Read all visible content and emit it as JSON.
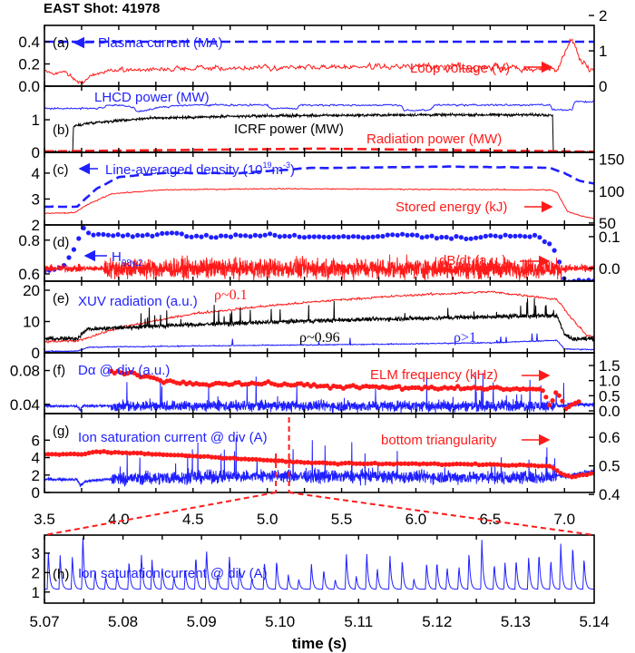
{
  "title": "EAST Shot: 41978",
  "colors": {
    "blue": "#1f1fff",
    "red": "#ff1a1a",
    "black": "#000000"
  },
  "chart_data": {
    "type": "line",
    "xlabel": "time (s)",
    "xlim": [
      3.5,
      7.2
    ],
    "xticks": [
      "3.5",
      "4.0",
      "4.5",
      "5.0",
      "5.5",
      "6.0",
      "6.5",
      "7.0"
    ],
    "zoom_xlim": [
      5.07,
      5.14
    ],
    "zoom_xticks": [
      "5.07",
      "5.08",
      "5.09",
      "5.10",
      "5.11",
      "5.12",
      "5.13",
      "5.14"
    ],
    "panels": [
      {
        "label": "(a)",
        "ylim_left": [
          0,
          0.547
        ],
        "yticks_left": [
          "0.0",
          "0.2",
          "0.4"
        ],
        "ylim_right": [
          0,
          1.72
        ],
        "yticks_right": [
          "0",
          "1",
          "2"
        ],
        "annotations": [
          {
            "text": "Plasma current (MA)",
            "color": "blue"
          },
          {
            "text": "Loop voltage (V)",
            "color": "red"
          }
        ],
        "series": [
          {
            "name": "Plasma current (MA)",
            "id": "ip",
            "axis": "left",
            "color": "blue",
            "style": "dashed",
            "x": [
              3.5,
              7.2
            ],
            "y": [
              0.4,
              0.4
            ]
          },
          {
            "name": "Loop voltage (V)",
            "id": "vloop",
            "axis": "right",
            "color": "red",
            "style": "line",
            "x": [
              3.5,
              3.65,
              3.72,
              3.76,
              3.82,
              3.95,
              4.5,
              5.5,
              6.5,
              6.95,
              7.0,
              7.05,
              7.1,
              7.15,
              7.2
            ],
            "y": [
              0.4,
              0.4,
              0.15,
              0.05,
              0.3,
              0.45,
              0.5,
              0.55,
              0.55,
              0.5,
              0.9,
              1.35,
              0.8,
              0.6,
              0.4
            ]
          }
        ]
      },
      {
        "label": "(b)",
        "ylim_left": [
          0,
          2.03
        ],
        "yticks_left": [
          "0",
          "1"
        ],
        "annotations": [
          {
            "text": "LHCD power (MW)",
            "color": "blue"
          },
          {
            "text": "ICRF power (MW)",
            "color": "black"
          },
          {
            "text": "Radiation power (MW)",
            "color": "red"
          }
        ],
        "series": [
          {
            "name": "LHCD power (MW)",
            "id": "lhcd",
            "axis": "left",
            "color": "blue",
            "style": "line",
            "x": [
              3.5,
              3.9,
              3.92,
              4.1,
              4.12,
              4.2,
              4.3,
              4.5,
              5.0,
              5.02,
              5.2,
              5.22,
              5.9,
              5.92,
              6.1,
              6.12,
              6.9,
              6.92,
              7.05,
              7.07,
              7.2
            ],
            "y": [
              1.35,
              1.35,
              1.45,
              1.4,
              1.25,
              1.3,
              1.4,
              1.45,
              1.45,
              1.35,
              1.35,
              1.45,
              1.45,
              1.28,
              1.3,
              1.45,
              1.45,
              1.3,
              1.3,
              1.55,
              1.55
            ]
          },
          {
            "name": "ICRF power (MW)",
            "id": "icrf",
            "axis": "left",
            "color": "black",
            "style": "line",
            "x": [
              3.5,
              3.69,
              3.695,
              3.8,
              4.2,
              5.0,
              6.0,
              6.9,
              6.92,
              6.925,
              7.2
            ],
            "y": [
              0,
              0,
              0.8,
              0.9,
              1.05,
              1.12,
              1.15,
              1.15,
              1.15,
              0,
              0
            ]
          },
          {
            "name": "Radiation power (MW)",
            "id": "prad",
            "axis": "left",
            "color": "red",
            "style": "dashed",
            "x": [
              3.5,
              3.7,
              4.5,
              5.5,
              6.9,
              7.0,
              7.1,
              7.2
            ],
            "y": [
              0.03,
              0.03,
              0.08,
              0.12,
              0.14,
              0.12,
              0.03,
              0.02
            ]
          }
        ]
      },
      {
        "label": "(c)",
        "ylim_left": [
          2,
          4.8
        ],
        "yticks_left": [
          "2",
          "3",
          "4"
        ],
        "ylim_right": [
          47,
          161
        ],
        "yticks_right": [
          "50",
          "100",
          "150"
        ],
        "annotations": [
          {
            "text": "Line-averaged density (10",
            "sup1": "19",
            "mid": "m",
            "sup2": "-3",
            "end": ")",
            "color": "blue"
          },
          {
            "text": "Stored energy (kJ)",
            "color": "red"
          }
        ],
        "series": [
          {
            "name": "Line-averaged density (10^19 m^-3)",
            "id": "ne",
            "axis": "left",
            "color": "blue",
            "style": "dashed",
            "x": [
              3.5,
              3.72,
              3.85,
              4.0,
              4.3,
              4.8,
              5.3,
              5.5,
              6.2,
              6.9,
              7.0,
              7.1,
              7.2
            ],
            "y": [
              2.7,
              2.7,
              3.4,
              3.85,
              4.0,
              4.0,
              4.2,
              4.2,
              4.25,
              4.2,
              4.0,
              3.7,
              3.6
            ]
          },
          {
            "name": "Stored energy (kJ)",
            "id": "wmhd",
            "axis": "right",
            "color": "red",
            "style": "line",
            "x": [
              3.5,
              3.7,
              3.8,
              3.95,
              4.3,
              5.0,
              6.0,
              6.9,
              6.95,
              7.02,
              7.1,
              7.2
            ],
            "y": [
              65,
              66,
              80,
              96,
              102,
              104,
              103,
              102,
              98,
              68,
              62,
              57
            ]
          }
        ]
      },
      {
        "label": "(d)",
        "ylim_left": [
          0.557,
          0.89
        ],
        "yticks_left": [
          "0.6",
          "0.8"
        ],
        "ylim_right": [
          -0.04,
          0.137
        ],
        "yticks_right": [
          "0.0",
          "0.1"
        ],
        "annotations": [
          {
            "text": "H",
            "sub": "98y,2",
            "color": "blue"
          },
          {
            "text": "dB/dt (a.u.)",
            "color": "red"
          }
        ],
        "series": [
          {
            "name": "H98y,2",
            "id": "h98",
            "axis": "left",
            "color": "blue",
            "style": "dots",
            "x": [
              3.5,
              3.62,
              3.7,
              3.76,
              3.82,
              4.2,
              4.4,
              4.5,
              5.0,
              5.5,
              5.9,
              6.3,
              6.8,
              6.85,
              6.92,
              6.96,
              7.0,
              7.2
            ],
            "y": [
              0.62,
              0.63,
              0.75,
              0.88,
              0.83,
              0.83,
              0.845,
              0.82,
              0.83,
              0.815,
              0.83,
              0.815,
              0.83,
              0.8,
              0.76,
              0.68,
              0.56,
              0.56
            ]
          },
          {
            "name": "dB/dt (a.u.)",
            "id": "dbdt",
            "axis": "right",
            "color": "red",
            "style": "line",
            "x": [
              3.5,
              3.75,
              3.9,
              7.2
            ],
            "y": [
              0.0,
              0.0,
              0.0,
              0.0
            ]
          }
        ]
      },
      {
        "label": "(e)",
        "ylim_left": [
          0,
          22.9
        ],
        "yticks_left": [
          "0",
          "10",
          "20"
        ],
        "annotations": [
          {
            "text": "XUV radiation (a.u.)",
            "color": "blue"
          },
          {
            "text": "ρ~0.1",
            "color": "red"
          },
          {
            "text": "ρ~0.96",
            "color": "black"
          },
          {
            "text": "ρ>1",
            "color": "blue"
          }
        ],
        "series": [
          {
            "name": "ρ~0.1",
            "id": "xuv1",
            "axis": "left",
            "color": "red",
            "style": "line",
            "x": [
              3.5,
              3.72,
              4.0,
              4.5,
              5.0,
              5.5,
              6.0,
              6.5,
              6.8,
              6.95,
              7.05,
              7.15,
              7.2
            ],
            "y": [
              3.5,
              3.8,
              8,
              12.5,
              15,
              17,
              18.5,
              19.5,
              18,
              17,
              11,
              5.5,
              5
            ]
          },
          {
            "name": "ρ~0.96",
            "id": "xuv2",
            "axis": "left",
            "color": "black",
            "style": "line",
            "x": [
              3.5,
              3.72,
              3.78,
              4.0,
              4.5,
              5.5,
              6.5,
              6.95,
              7.0,
              7.05,
              7.2
            ],
            "y": [
              4.5,
              4.5,
              7.5,
              8,
              9,
              10.5,
              11.5,
              12,
              6,
              4.5,
              4.5
            ]
          },
          {
            "name": "ρ>1",
            "id": "xuv3",
            "axis": "left",
            "color": "blue",
            "style": "line",
            "x": [
              3.5,
              3.72,
              3.8,
              4.5,
              5.5,
              6.5,
              6.95,
              7.0,
              7.2
            ],
            "y": [
              0.5,
              0.5,
              1.8,
              2.2,
              2.6,
              3.2,
              4.0,
              1.2,
              1.0
            ]
          }
        ]
      },
      {
        "label": "(f)",
        "ylim_left": [
          0.029,
          0.101
        ],
        "yticks_left": [
          "0.04",
          "0.08"
        ],
        "ylim_right": [
          -0.09,
          1.92
        ],
        "yticks_right": [
          "0.0",
          "0.5",
          "1.0",
          "1.5"
        ],
        "annotations": [
          {
            "text": "Dα @ div (a.u.)",
            "color": "blue"
          },
          {
            "text": "ELM frequency (kHz)",
            "color": "red"
          }
        ],
        "series": [
          {
            "name": "Dα @ div (a.u.)",
            "id": "dalpha",
            "axis": "left",
            "color": "blue",
            "style": "line",
            "x": [
              3.5,
              3.72,
              3.74,
              3.76,
              3.9,
              7.0,
              7.05,
              7.2
            ],
            "y": [
              0.038,
              0.038,
              0.033,
              0.038,
              0.038,
              0.038,
              0.04,
              0.039
            ]
          },
          {
            "name": "ELM frequency (kHz)",
            "id": "felm",
            "axis": "right",
            "color": "red",
            "style": "dots",
            "x": [
              3.95,
              4.1,
              4.15,
              4.3,
              4.5,
              5.0,
              5.5,
              6.0,
              6.5,
              6.85,
              6.9,
              6.95,
              7.0,
              7.1
            ],
            "y": [
              1.3,
              1.25,
              1.15,
              1.0,
              0.9,
              0.9,
              0.8,
              0.75,
              0.75,
              0.7,
              0.2,
              0.65,
              0.1,
              0.3
            ]
          }
        ]
      },
      {
        "label": "(g)",
        "ylim_left": [
          0,
          9.05
        ],
        "yticks_left": [
          "0",
          "2",
          "4",
          "6"
        ],
        "ylim_right": [
          0.407,
          0.683
        ],
        "yticks_right": [
          "0.4",
          "0.5",
          "0.6"
        ],
        "annotations": [
          {
            "text": "Ion saturation current @ div (A)",
            "color": "blue"
          },
          {
            "text": "bottom triangularity",
            "color": "red"
          }
        ],
        "series": [
          {
            "name": "Ion saturation current @ div (A)",
            "id": "isat",
            "axis": "left",
            "color": "blue",
            "style": "line",
            "x": [
              3.5,
              3.72,
              3.74,
              3.78,
              4.0,
              5.0,
              6.9,
              6.95,
              7.0,
              7.2
            ],
            "y": [
              1.5,
              1.5,
              0.8,
              1.3,
              1.6,
              1.9,
              1.7,
              2.0,
              1.8,
              2.5
            ]
          },
          {
            "name": "bottom triangularity",
            "id": "tri",
            "axis": "right",
            "color": "red",
            "style": "dots",
            "x": [
              3.5,
              3.75,
              3.85,
              4.5,
              5.0,
              5.2,
              5.5,
              6.0,
              6.5,
              6.9,
              7.0,
              7.05,
              7.2
            ],
            "y": [
              0.54,
              0.54,
              0.55,
              0.535,
              0.52,
              0.513,
              0.508,
              0.507,
              0.505,
              0.5,
              0.47,
              0.463,
              0.475
            ]
          }
        ]
      },
      {
        "label": "(h)",
        "zoom": true,
        "ylim_left": [
          0.43,
          3.93
        ],
        "yticks_left": [
          "1",
          "2",
          "3"
        ],
        "annotations": [
          {
            "text": "Ion saturation current @ div (A)",
            "color": "blue"
          }
        ],
        "series": [
          {
            "name": "Ion saturation current @ div (A)",
            "id": "isat_zoom",
            "axis": "left",
            "color": "blue",
            "style": "line",
            "x": [
              5.07,
              5.14
            ],
            "y": [
              1.25,
              1.25
            ]
          }
        ]
      }
    ]
  }
}
